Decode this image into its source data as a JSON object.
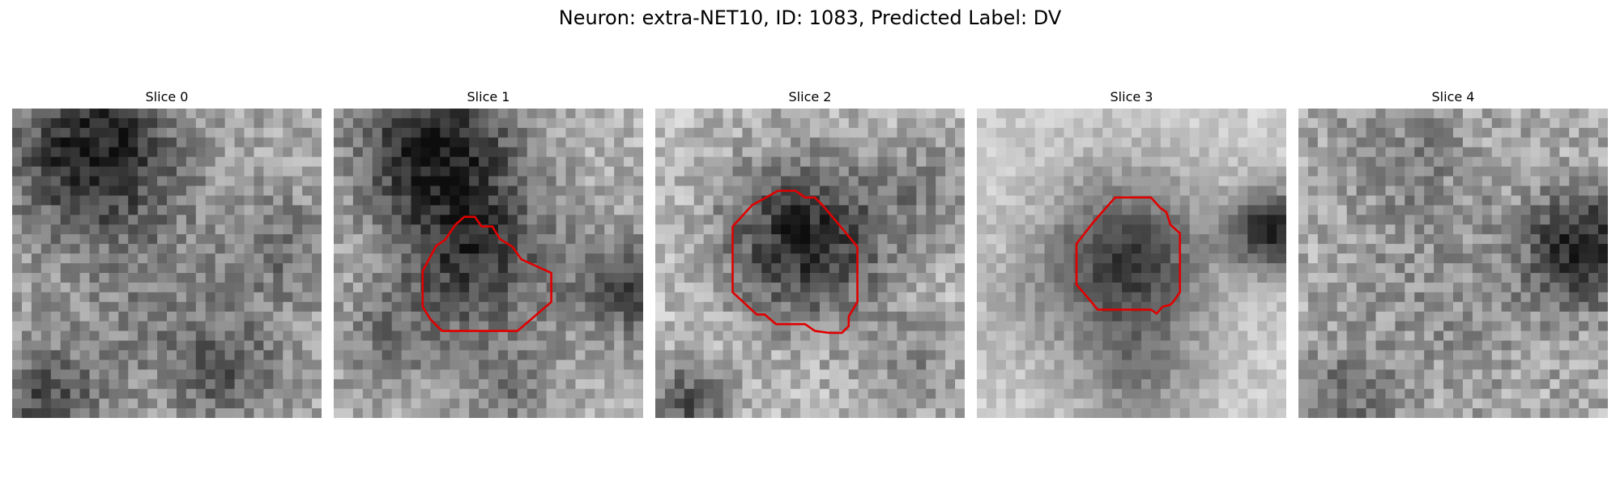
{
  "figure": {
    "title": "Neuron: extra-NET10, ID: 1083, Predicted Label: DV"
  },
  "colors": {
    "contour": "#e00000",
    "background": "#ffffff"
  },
  "panels": [
    {
      "title": "Slice 0",
      "has_contour": false
    },
    {
      "title": "Slice 1",
      "has_contour": true
    },
    {
      "title": "Slice 2",
      "has_contour": true
    },
    {
      "title": "Slice 3",
      "has_contour": true
    },
    {
      "title": "Slice 4",
      "has_contour": false
    }
  ]
}
